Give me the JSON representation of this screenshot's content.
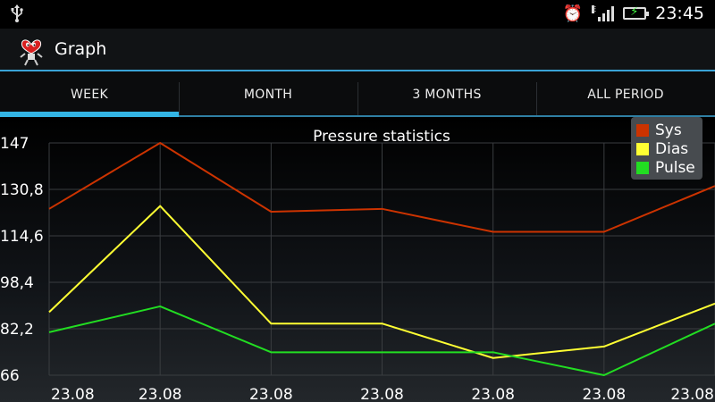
{
  "status_bar": {
    "usb_icon": "usb-icon",
    "network_type": "E",
    "time": "23:45"
  },
  "app": {
    "title": "Graph",
    "icon": "heart-robot-icon"
  },
  "tabs": [
    {
      "label": "WEEK",
      "active": true
    },
    {
      "label": "MONTH",
      "active": false
    },
    {
      "label": "3 MONTHS",
      "active": false
    },
    {
      "label": "ALL PERIOD",
      "active": false
    }
  ],
  "colors": {
    "accent": "#33b5e5",
    "sys": "#cc3300",
    "dias": "#ffff33",
    "pulse": "#22dd22"
  },
  "chart_data": {
    "type": "line",
    "title": "Pressure statistics",
    "x": [
      "23.08",
      "23.08",
      "23.08",
      "23.08",
      "23.08",
      "23.08",
      "23.08"
    ],
    "y_ticks": [
      "147",
      "130,8",
      "114,6",
      "98,4",
      "82,2",
      "66"
    ],
    "ylim": [
      66,
      147
    ],
    "grid": true,
    "legend": "top-right",
    "series": [
      {
        "name": "Sys",
        "color": "#cc3300",
        "values": [
          124,
          147,
          123,
          124,
          116,
          116,
          132
        ]
      },
      {
        "name": "Dias",
        "color": "#ffff33",
        "values": [
          88,
          125,
          84,
          84,
          72,
          76,
          91
        ]
      },
      {
        "name": "Pulse",
        "color": "#22dd22",
        "values": [
          81,
          90,
          74,
          74,
          74,
          66,
          84
        ]
      }
    ]
  }
}
